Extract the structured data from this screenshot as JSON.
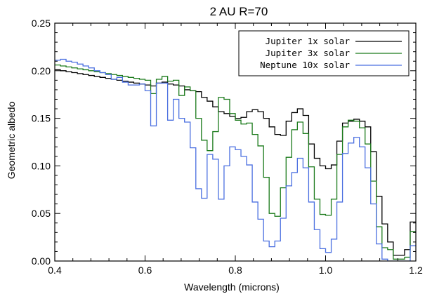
{
  "chart_data": {
    "type": "line",
    "title": "2 AU  R=70",
    "xlabel": "Wavelength (microns)",
    "ylabel": "Geometric albedo",
    "xlim": [
      0.4,
      1.2
    ],
    "ylim": [
      0.0,
      0.25
    ],
    "x_ticks": [
      {
        "value": 0.4,
        "label": "0.4"
      },
      {
        "value": 0.6,
        "label": "0.6"
      },
      {
        "value": 0.8,
        "label": "0.8"
      },
      {
        "value": 1.0,
        "label": "1.0"
      },
      {
        "value": 1.2,
        "label": "1.2"
      }
    ],
    "y_ticks": [
      {
        "value": 0.0,
        "label": "0.00"
      },
      {
        "value": 0.05,
        "label": "0.05"
      },
      {
        "value": 0.1,
        "label": "0.10"
      },
      {
        "value": 0.15,
        "label": "0.15"
      },
      {
        "value": 0.2,
        "label": "0.20"
      },
      {
        "value": 0.25,
        "label": "0.25"
      }
    ],
    "grid": false,
    "legend_position": "top-right",
    "step_width": 0.0125,
    "series": [
      {
        "name": "Jupiter 1x solar",
        "color": "#000000",
        "x": [
          0.4,
          0.4125,
          0.425,
          0.4375,
          0.45,
          0.4625,
          0.475,
          0.4875,
          0.5,
          0.5125,
          0.525,
          0.5375,
          0.55,
          0.5625,
          0.575,
          0.5875,
          0.6,
          0.6125,
          0.625,
          0.6375,
          0.65,
          0.6625,
          0.675,
          0.6875,
          0.7,
          0.7125,
          0.725,
          0.7375,
          0.75,
          0.7625,
          0.775,
          0.7875,
          0.8,
          0.8125,
          0.825,
          0.8375,
          0.85,
          0.8625,
          0.875,
          0.8875,
          0.9,
          0.9125,
          0.925,
          0.9375,
          0.95,
          0.9625,
          0.975,
          0.9875,
          1.0,
          1.0125,
          1.025,
          1.0375,
          1.05,
          1.0625,
          1.075,
          1.0875,
          1.1,
          1.1125,
          1.125,
          1.1375,
          1.15,
          1.1625,
          1.175,
          1.1875
        ],
        "y": [
          0.201,
          0.2,
          0.199,
          0.198,
          0.197,
          0.196,
          0.195,
          0.194,
          0.193,
          0.192,
          0.191,
          0.19,
          0.189,
          0.188,
          0.187,
          0.186,
          0.185,
          0.184,
          0.187,
          0.188,
          0.186,
          0.185,
          0.184,
          0.18,
          0.179,
          0.178,
          0.172,
          0.168,
          0.162,
          0.157,
          0.155,
          0.152,
          0.15,
          0.151,
          0.157,
          0.159,
          0.157,
          0.15,
          0.141,
          0.133,
          0.132,
          0.147,
          0.156,
          0.16,
          0.153,
          0.123,
          0.108,
          0.1,
          0.097,
          0.101,
          0.126,
          0.145,
          0.147,
          0.149,
          0.147,
          0.141,
          0.115,
          0.068,
          0.039,
          0.02,
          0.006,
          0.006,
          0.012,
          0.041
        ]
      },
      {
        "name": "Jupiter 3x solar",
        "color": "#1a7a1a",
        "x": [
          0.4,
          0.4125,
          0.425,
          0.4375,
          0.45,
          0.4625,
          0.475,
          0.4875,
          0.5,
          0.5125,
          0.525,
          0.5375,
          0.55,
          0.5625,
          0.575,
          0.5875,
          0.6,
          0.6125,
          0.625,
          0.6375,
          0.65,
          0.6625,
          0.675,
          0.6875,
          0.7,
          0.7125,
          0.725,
          0.7375,
          0.75,
          0.7625,
          0.775,
          0.7875,
          0.8,
          0.8125,
          0.825,
          0.8375,
          0.85,
          0.8625,
          0.875,
          0.8875,
          0.9,
          0.9125,
          0.925,
          0.9375,
          0.95,
          0.9625,
          0.975,
          0.9875,
          1.0,
          1.0125,
          1.025,
          1.0375,
          1.05,
          1.0625,
          1.075,
          1.0875,
          1.1,
          1.1125,
          1.125,
          1.1375,
          1.15,
          1.1625,
          1.175,
          1.1875
        ],
        "y": [
          0.206,
          0.205,
          0.204,
          0.203,
          0.202,
          0.201,
          0.2,
          0.199,
          0.198,
          0.197,
          0.196,
          0.195,
          0.194,
          0.193,
          0.192,
          0.191,
          0.19,
          0.176,
          0.191,
          0.194,
          0.189,
          0.19,
          0.174,
          0.183,
          0.179,
          0.15,
          0.127,
          0.116,
          0.136,
          0.172,
          0.17,
          0.155,
          0.148,
          0.144,
          0.145,
          0.133,
          0.121,
          0.088,
          0.05,
          0.047,
          0.077,
          0.109,
          0.138,
          0.146,
          0.134,
          0.099,
          0.065,
          0.049,
          0.048,
          0.065,
          0.112,
          0.141,
          0.148,
          0.147,
          0.14,
          0.123,
          0.084,
          0.036,
          0.014,
          0.012,
          0.002,
          0.002,
          0.004,
          0.031
        ]
      },
      {
        "name": "Neptune 10x solar",
        "color": "#4a6fe0",
        "x": [
          0.4,
          0.4125,
          0.425,
          0.4375,
          0.45,
          0.4625,
          0.475,
          0.4875,
          0.5,
          0.5125,
          0.525,
          0.5375,
          0.55,
          0.5625,
          0.575,
          0.5875,
          0.6,
          0.6125,
          0.625,
          0.6375,
          0.65,
          0.6625,
          0.675,
          0.6875,
          0.7,
          0.7125,
          0.725,
          0.7375,
          0.75,
          0.7625,
          0.775,
          0.7875,
          0.8,
          0.8125,
          0.825,
          0.8375,
          0.85,
          0.8625,
          0.875,
          0.8875,
          0.9,
          0.9125,
          0.925,
          0.9375,
          0.95,
          0.9625,
          0.975,
          0.9875,
          1.0,
          1.0125,
          1.025,
          1.0375,
          1.05,
          1.0625,
          1.075,
          1.0875,
          1.1,
          1.1125,
          1.125,
          1.1375,
          1.15,
          1.1625,
          1.175,
          1.1875
        ],
        "y": [
          0.211,
          0.212,
          0.21,
          0.209,
          0.207,
          0.205,
          0.203,
          0.2,
          0.198,
          0.196,
          0.191,
          0.193,
          0.188,
          0.185,
          0.185,
          0.186,
          0.179,
          0.142,
          0.187,
          0.187,
          0.148,
          0.17,
          0.15,
          0.146,
          0.119,
          0.076,
          0.066,
          0.112,
          0.107,
          0.065,
          0.1,
          0.12,
          0.117,
          0.11,
          0.101,
          0.062,
          0.044,
          0.021,
          0.015,
          0.021,
          0.045,
          0.079,
          0.093,
          0.108,
          0.098,
          0.062,
          0.033,
          0.013,
          0.009,
          0.023,
          0.062,
          0.113,
          0.124,
          0.13,
          0.12,
          0.098,
          0.06,
          0.018,
          0.002,
          0.0,
          0.0,
          0.0,
          0.0,
          0.016
        ]
      }
    ]
  }
}
